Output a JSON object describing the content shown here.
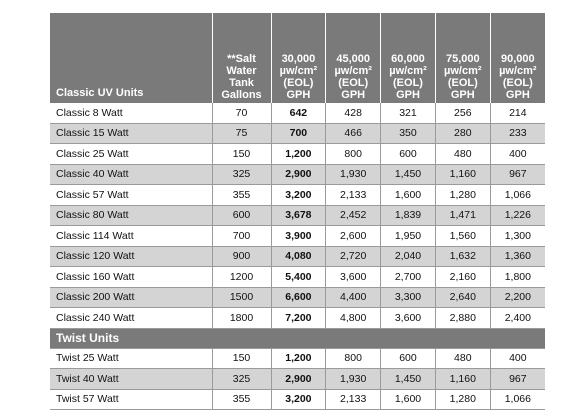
{
  "header": {
    "name_col": "Classic UV Units",
    "tank_col": [
      "**Salt",
      "Water",
      "Tank",
      "Gallons"
    ],
    "gph_cols": [
      [
        "30,000",
        "µw/cm²",
        "(EOL)",
        "GPH"
      ],
      [
        "45,000",
        "µw/cm²",
        "(EOL)",
        "GPH"
      ],
      [
        "60,000",
        "µw/cm²",
        "(EOL)",
        "GPH"
      ],
      [
        "75,000",
        "µw/cm²",
        "(EOL)",
        "GPH"
      ],
      [
        "90,000",
        "µw/cm²",
        "(EOL)",
        "GPH"
      ]
    ]
  },
  "classic_rows": [
    {
      "name": "Classic 8 Watt",
      "tank": "70",
      "gph": [
        "642",
        "428",
        "321",
        "256",
        "214"
      ]
    },
    {
      "name": "Classic 15 Watt",
      "tank": "75",
      "gph": [
        "700",
        "466",
        "350",
        "280",
        "233"
      ]
    },
    {
      "name": "Classic 25 Watt",
      "tank": "150",
      "gph": [
        "1,200",
        "800",
        "600",
        "480",
        "400"
      ]
    },
    {
      "name": "Classic 40 Watt",
      "tank": "325",
      "gph": [
        "2,900",
        "1,930",
        "1,450",
        "1,160",
        "967"
      ]
    },
    {
      "name": "Classic 57 Watt",
      "tank": "355",
      "gph": [
        "3,200",
        "2,133",
        "1,600",
        "1,280",
        "1,066"
      ]
    },
    {
      "name": "Classic 80 Watt",
      "tank": "600",
      "gph": [
        "3,678",
        "2,452",
        "1,839",
        "1,471",
        "1,226"
      ]
    },
    {
      "name": "Classic 114 Watt",
      "tank": "700",
      "gph": [
        "3,900",
        "2,600",
        "1,950",
        "1,560",
        "1,300"
      ]
    },
    {
      "name": "Classic 120 Watt",
      "tank": "900",
      "gph": [
        "4,080",
        "2,720",
        "2,040",
        "1,632",
        "1,360"
      ]
    },
    {
      "name": "Classic 160 Watt",
      "tank": "1200",
      "gph": [
        "5,400",
        "3,600",
        "2,700",
        "2,160",
        "1,800"
      ]
    },
    {
      "name": "Classic 200 Watt",
      "tank": "1500",
      "gph": [
        "6,600",
        "4,400",
        "3,300",
        "2,640",
        "2,200"
      ]
    },
    {
      "name": "Classic 240 Watt",
      "tank": "1800",
      "gph": [
        "7,200",
        "4,800",
        "3,600",
        "2,880",
        "2,400"
      ]
    }
  ],
  "twist_section": "Twist Units",
  "twist_rows": [
    {
      "name": "Twist 25 Watt",
      "tank": "150",
      "gph": [
        "1,200",
        "800",
        "600",
        "480",
        "400"
      ]
    },
    {
      "name": "Twist 40 Watt",
      "tank": "325",
      "gph": [
        "2,900",
        "1,930",
        "1,450",
        "1,160",
        "967"
      ]
    },
    {
      "name": "Twist 57 Watt",
      "tank": "355",
      "gph": [
        "3,200",
        "2,133",
        "1,600",
        "1,280",
        "1,066"
      ]
    }
  ],
  "colors": {
    "header_bg": "#7a7a7a",
    "row_shade": "#d4d4d4",
    "rule": "#9a9a9a"
  }
}
